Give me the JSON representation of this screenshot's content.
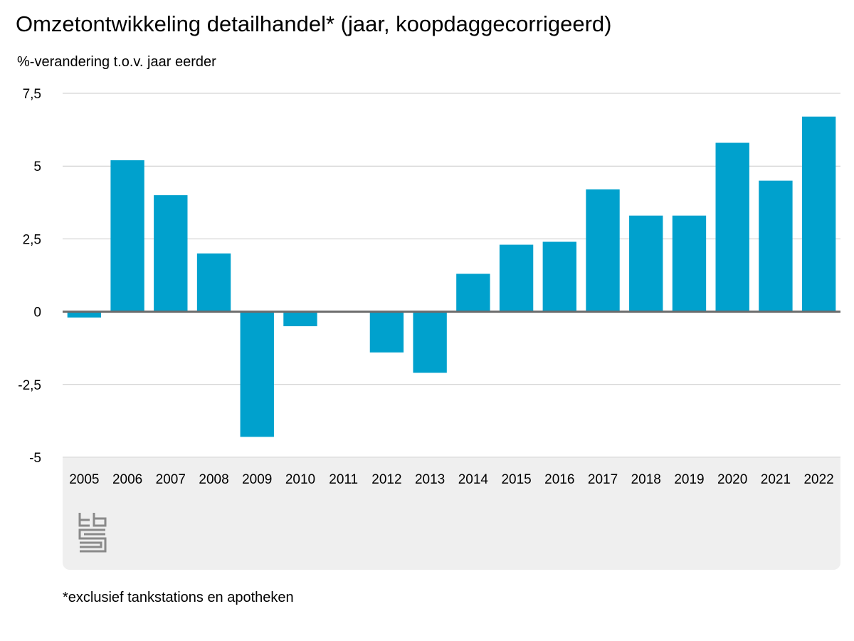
{
  "title": "Omzetontwikkeling detailhandel* (jaar, koopdaggecorrigeerd)",
  "footnote": "*exclusief tankstations en apotheken",
  "logo_text": "cbs",
  "chart_data": {
    "type": "bar",
    "title": "Omzetontwikkeling detailhandel* (jaar, koopdaggecorrigeerd)",
    "ylabel": "%-verandering t.o.v. jaar eerder",
    "xlabel": "",
    "categories": [
      "2005",
      "2006",
      "2007",
      "2008",
      "2009",
      "2010",
      "2011",
      "2012",
      "2013",
      "2014",
      "2015",
      "2016",
      "2017",
      "2018",
      "2019",
      "2020",
      "2021",
      "2022"
    ],
    "values": [
      -0.2,
      5.2,
      4.0,
      2.0,
      -4.3,
      -0.5,
      0.0,
      -1.4,
      -2.1,
      1.3,
      2.3,
      2.4,
      4.2,
      3.3,
      3.3,
      5.8,
      4.5,
      6.7
    ],
    "ylim": [
      -5,
      7.5
    ],
    "yticks": [
      7.5,
      5,
      2.5,
      0,
      -2.5,
      -5
    ],
    "ytick_labels": [
      "7,5",
      "5",
      "2,5",
      "0",
      "-2,5",
      "-5"
    ],
    "grid": true,
    "bar_color": "#00a1cd"
  }
}
